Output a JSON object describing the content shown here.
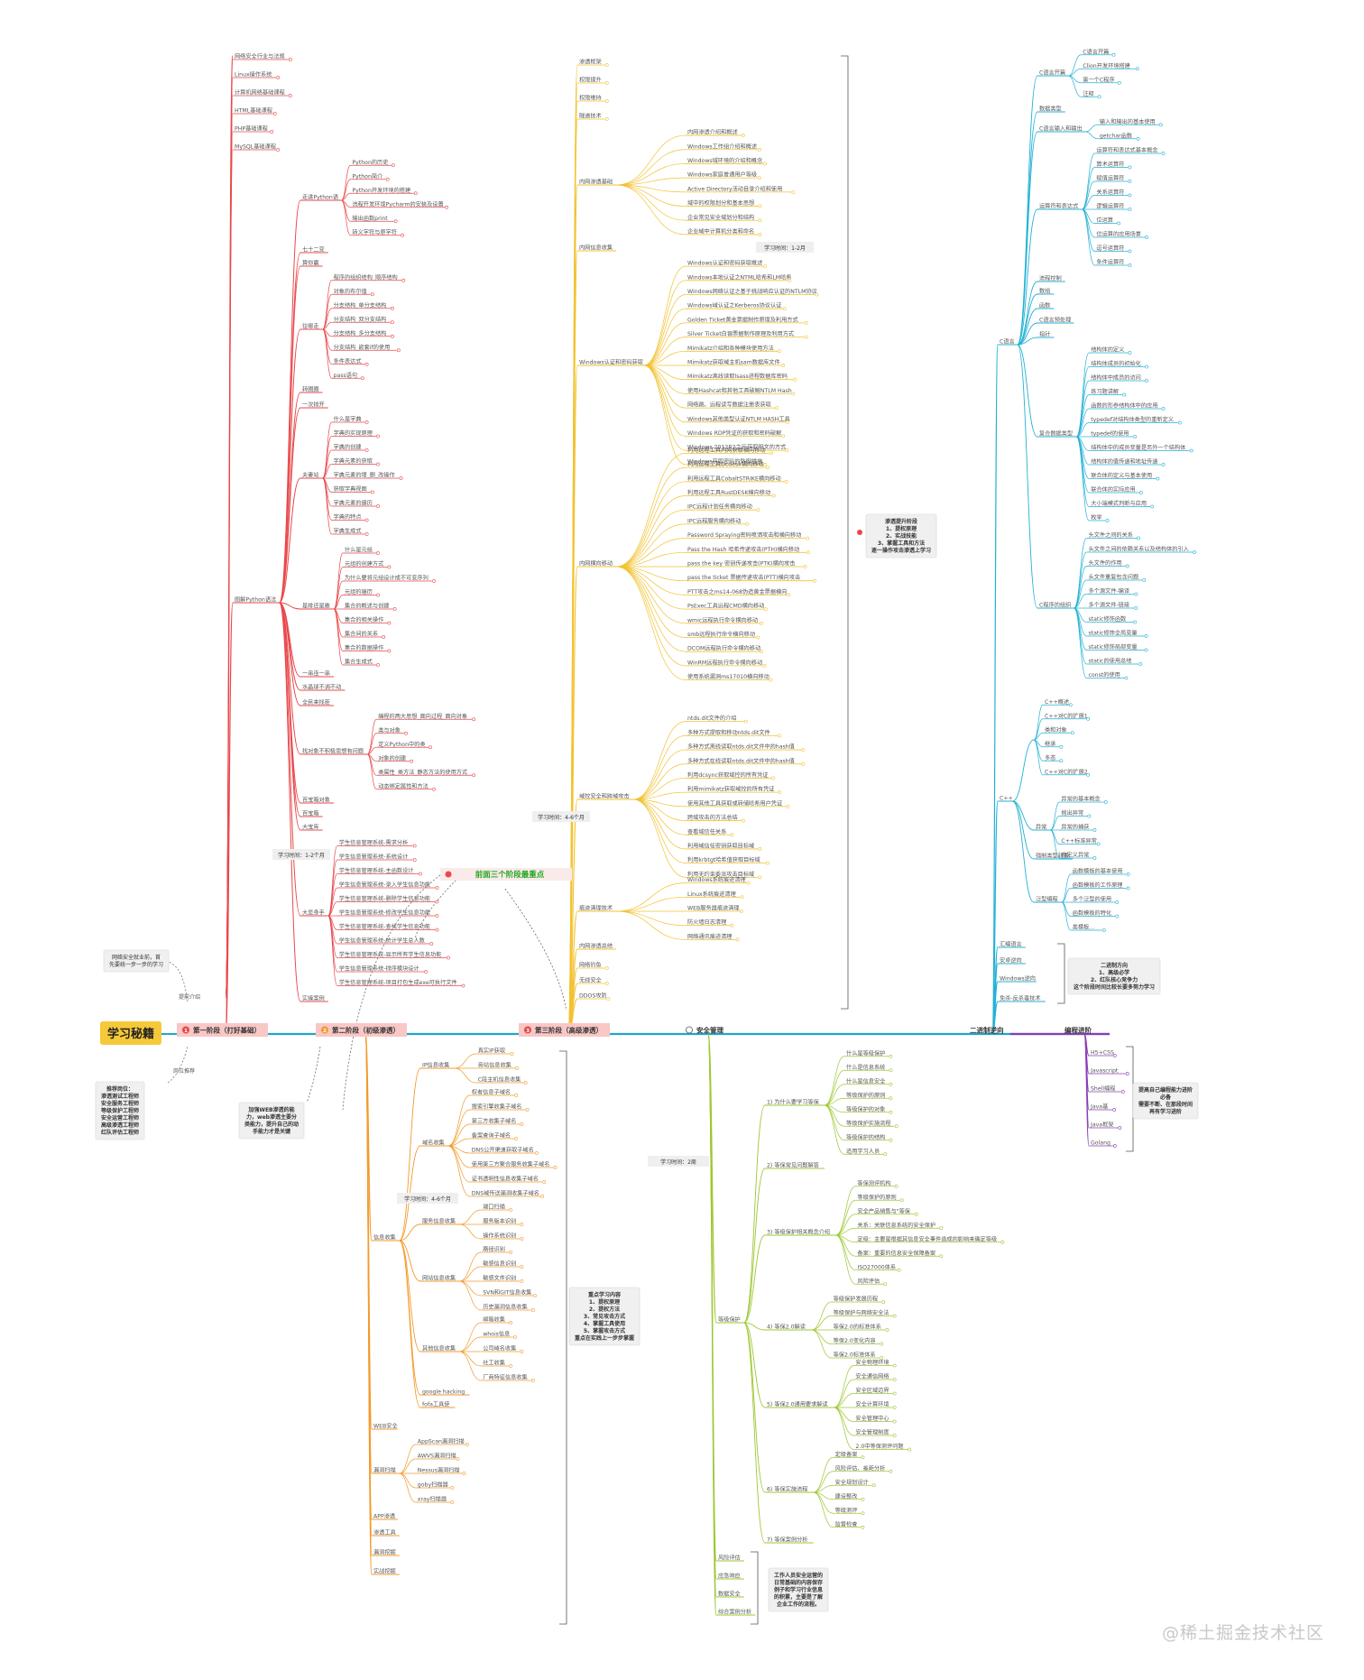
{
  "root": {
    "label": "学习秘籍"
  },
  "watermark": "@稀土掘金技术社区",
  "colors": {
    "red": "#e8484a",
    "orange": "#f39a2c",
    "yellow": "#f2c230",
    "green": "#9cc832",
    "cyan": "#23b1d3",
    "purple": "#8b3bb6",
    "spine": "#22a6c8"
  },
  "stages": [
    {
      "num": "1",
      "label": "第一阶段（打好基础）",
      "color": "#e8484a"
    },
    {
      "num": "2",
      "label": "第二阶段（初级渗透）",
      "color": "#f39a2c"
    },
    {
      "num": "3",
      "label": "第三阶段（高级渗透）",
      "color": "#e8484a"
    },
    {
      "num": "4",
      "label": "安全管理",
      "color": "#9cc832"
    },
    {
      "num": "",
      "label": "二进制逆向",
      "color": "#23b1d3"
    },
    {
      "num": "",
      "label": "编程进阶",
      "color": "#8b3bb6"
    }
  ],
  "left_notes": {
    "goal_label": "提前介绍",
    "goal_text": [
      "网络安全就业前，首",
      "先要统一步一步的学习"
    ],
    "jobs_label": "岗位推荐",
    "jobs": [
      "推荐岗位：",
      "渗透测试工程师",
      "安全服务工程师",
      "等级保护工程师",
      "安全运营工程师",
      "高级渗透工程师",
      "红队评估工程师"
    ]
  },
  "stage1": {
    "basics": [
      "网络安全行业与法规",
      "Linux操作系统",
      "计算机网络基础课程",
      "HTML基础课程",
      "PHP基础课程",
      "MySQL基础课程"
    ],
    "python_label": "图解Python语法",
    "python_groups": [
      {
        "label": "走进Python语",
        "items": [
          "Python的历史",
          "Python简介",
          "Python开发环境的搭建",
          "流程开发环境Pycharm的安装及设置",
          "输出函数print",
          "转义字符与原字符"
        ]
      },
      {
        "label": "七十二变",
        "items": []
      },
      {
        "label": "算你赢",
        "items": []
      },
      {
        "label": "往哪走",
        "items": [
          "程序的组织结构_顺序结构",
          "对象的布尔值",
          "分支结构_单分支结构",
          "分支结构_双分支结构",
          "分支结构_多分支结构",
          "分支结构_嵌套if的使用",
          "条件表达式",
          "pass语句"
        ]
      },
      {
        "label": "转圈圈",
        "items": []
      },
      {
        "label": "一次排开",
        "items": []
      },
      {
        "label": "夫妻站",
        "items": [
          "什么是字典",
          "字典的实现原理",
          "字典的创建",
          "字典元素的获取",
          "字典元素的增_删_改操作",
          "获取字典视图",
          "字典元素的遍历",
          "字典的特点",
          "字典生成式"
        ]
      },
      {
        "label": "是排还是散",
        "items": [
          "什么是元组",
          "元组的创建方式",
          "为什么要将元组设计成不可变序列",
          "元组的遍历",
          "集合的概述与创建",
          "集合的相关操作",
          "集合间的关系",
          "集合的数据操作",
          "集合生成式"
        ]
      },
      {
        "label": "一串连一串",
        "items": []
      },
      {
        "label": "水晶球不调不动",
        "items": []
      },
      {
        "label": "全民来找茬",
        "items": []
      },
      {
        "label": "找对象不积极思想有问题",
        "items": [
          "编程的两大思想_面向过程_面向对象",
          "类与对象",
          "定义Python中的类",
          "对象的创建",
          "类属性_类方法_静态方法的使用方式",
          "动态绑定属性和方法"
        ]
      },
      {
        "label": "百宝箱对象",
        "items": []
      },
      {
        "label": "百宝箱",
        "items": []
      },
      {
        "label": "大宝库",
        "items": []
      },
      {
        "label": "大显身手",
        "items": [
          "学生信息管理系统-需求分析",
          "学生信息管理系统-系统设计",
          "学生信息管理系统-主函数设计",
          "学生信息管理系统-录入学生信息功能",
          "学生信息管理系统-删除学生信息功能",
          "学生信息管理系统-修改学生信息功能",
          "学生信息管理系统-查找学生信息功能",
          "学生信息管理系统-统计学生总人数",
          "学生信息管理系统-显示所有学生信息功能",
          "学生信息管理系统-排序模块设计",
          "学生信息管理系统-项目打包生成exe可执行文件"
        ]
      },
      {
        "label": "实操案例",
        "items": []
      }
    ],
    "time": "学习时间：1-2个月",
    "highlight": "前面三个阶段最重点"
  },
  "stage2": {
    "time": "学习时间：4-6个月",
    "groups": [
      {
        "label": "信息收集",
        "sub": [
          {
            "label": "IP信息收集",
            "items": [
              "真实IP获取",
              "旁站信息收集",
              "C段主机信息收集"
            ]
          },
          {
            "label": "域名收集",
            "items": [
              "权者信息子域名",
              "搜索引擎收集子域名",
              "第三方收集子域名",
              "备案查询子域名",
              "DNS公开渠道获取子域名",
              "使用第三方聚合服务收集子域名",
              "证书透明性信息收集子域名",
              "DNS域传送漏洞收集子域名"
            ]
          },
          {
            "label": "服务信息收集",
            "items": [
              "端口扫描",
              "服务版本识别",
              "操作系统识别"
            ]
          },
          {
            "label": "网站信息收集",
            "items": [
              "路径识别",
              "敏感信息识别",
              "敏感文件识别",
              "SVN和GIT信息收集",
              "历史漏洞信息收集"
            ]
          },
          {
            "label": "其他信息收集",
            "items": [
              "邮箱收集",
              "whois信息",
              "公司域名收集",
              "社工收集",
              "厂商特征信息收集"
            ]
          },
          {
            "label": "google hacking",
            "items": []
          },
          {
            "label": "fofa工具使",
            "items": []
          }
        ]
      },
      {
        "label": "WEB安全",
        "sub": []
      },
      {
        "label": "漏洞扫描",
        "sub": [
          {
            "label": "",
            "items": [
              "AppScan漏洞扫描",
              "AWVS漏洞扫描",
              "Nessus漏洞扫描",
              "goby扫描器",
              "xray扫描器"
            ]
          }
        ]
      },
      {
        "label": "APP渗透",
        "sub": []
      },
      {
        "label": "渗透工具",
        "sub": []
      },
      {
        "label": "漏洞挖掘",
        "sub": []
      },
      {
        "label": "实战挖掘",
        "sub": []
      }
    ],
    "note_web": [
      "加强WEB渗透的能",
      "力，web渗透主要分",
      "类能力，提升自己的动",
      "手能力才是关键"
    ],
    "note_key": [
      "重点学习内容",
      "1、提权原理",
      "2、提权方法",
      "3、常见攻击方式",
      "4、掌握工具使用",
      "5、掌握攻击方式",
      "重点在实践上一步步掌握"
    ]
  },
  "stage3": {
    "time": "学习时间：1-2月",
    "time2": "学习时间：4-6个月",
    "top": [
      "渗透框架",
      "权限提升",
      "权限维持",
      "隧道技术"
    ],
    "groups": [
      {
        "label": "内网渗透基础",
        "items": [
          "内网渗透介绍和概述",
          "Windows工作组介绍和概述",
          "Windows域环境的介绍和概念",
          "Windows家庭普通用户等级",
          "Active Directory活动目录介绍和使用",
          "域中的权限划分和基本思想",
          "企业常见安全域划分和结构",
          "企业域中计算机分类和命名"
        ]
      },
      {
        "label": "内网信息收集",
        "items": []
      },
      {
        "label": "Windows认证和密码获取",
        "items": [
          "Windows认证和密码获取概述",
          "Windows本地认证之NTML哈希和LM哈希",
          "Windows网络认证之基于挑战响应认证的NTLM协议",
          "Windows域认证之Kerberos协议认证",
          "Golden Ticket黄金票据制作原理及利用方式",
          "Silver Ticket白银票据制作原理及利用方式",
          "Mimikatz介绍和各种模块使用方法",
          "Mimikatz获取域主机sam数据库文件",
          "Mimikatz离线读取lsass进程数据库密码",
          "使用Hashcat和其他工具破解NTLM Hash",
          "网络跳、远程读写数据注册表获取",
          "Windows其他类型认证NTLM HASH工具",
          "Windows RDP凭证的获取和密码破解",
          "Windows 2012R2之后获取明文的方式",
          "Windows获取密码的防御措施"
        ]
      },
      {
        "label": "内网横向移动",
        "items": [
          "利用远程工具内网获取横向移动",
          "利用远程工具Dcdesk横向移动",
          "利用远程工具CobaltSTRIKE横向移动",
          "利用远程工具RustDESK横向移动",
          "IPC远程计划任务横向移动",
          "IPC远程服务横向移动",
          "Password Spraying密码喷洒攻击和横向移动",
          "Pass the Hash 哈希传递攻击(PTH)横向移动",
          "pass the key 密钥传递攻击(PTK)横向攻击",
          "pass the ticket 票据传递攻击(PTT)横向攻击",
          "PTT攻击之ms14-068伪造黄金票据横向",
          "PsExec工具远程CMD横向移动",
          "wmic远程执行命令横向移动",
          "smb远程执行命令横向移动",
          "DCOM远程执行命令横向移动",
          "WinRM远程执行命令横向移动",
          "使用系统漏洞ms17010横向移动"
        ]
      },
      {
        "label": "域控安全和跨域攻击",
        "items": [
          "ntds.dit文件的介绍",
          "多种方式提取和移动ntds.dit文件",
          "多种方式离线读取ntds.dit文件中的hash值",
          "多种方式在线读取ntds.dit文件中的hash值",
          "利用dcsync获取域控的所有凭证",
          "利用mimikatz获取域控的所有凭证",
          "使用其他工具获取或转储哈希用户凭证",
          "跨域攻击的方法总结",
          "查看域信任关系",
          "利用域信任密钥获取目标域",
          "利用krbtgt哈希值获取目标域",
          "利用无约束委派攻击目标域"
        ]
      },
      {
        "label": "痕迹清理技术",
        "items": [
          "Windows系统痕迹清理",
          "Linux系统痕迹清理",
          "WEB服务器痕迹清理",
          "防火墙日志清理",
          "网络通讯痕迹清理"
        ]
      },
      {
        "label": "内网渗透总结",
        "items": []
      }
    ],
    "bottom": [
      "网络钓鱼",
      "无线安全",
      "DDOS攻防"
    ],
    "note_right": [
      "渗透提升阶段",
      "1、提权原理",
      "2、实战技能",
      "3、掌握工具和方法",
      "逐一操作攻击渗透上学习"
    ]
  },
  "stage4": {
    "time": "学习时间：2周",
    "groups": [
      {
        "label": "等级保护",
        "sub": [
          {
            "label": "1) 为什么要学习等保",
            "items": [
              "什么是等级保护",
              "什么是信息系统",
              "什么是信息安全",
              "等级保护的原则",
              "等级保护的对象",
              "等级保护实施流程",
              "等级保护的结构",
              "适用学习人员"
            ]
          },
          {
            "label": "2) 等保常见问题解答",
            "items": []
          },
          {
            "label": "3) 等级保护相关概念介绍",
            "items": [
              "等保测评机构",
              "等级保护的原则",
              "安全产品销售与\"等保",
              "关系：关联信息系统的安全保护",
              "定级：主要是根据其信息安全事件造成的影响来确定等级",
              "备案：重要的信息安全保障备案",
              "ISO27000体系",
              "风险评估"
            ]
          },
          {
            "label": "4) 等保2.0解读",
            "items": [
              "等级保护发展历程",
              "等级保护与网络安全法",
              "等保2.0的标准体系",
              "等保2.0变化内容",
              "等保2.0标准体系"
            ]
          },
          {
            "label": "5) 等保2.0通用要求解读",
            "items": [
              "安全物理环境",
              "安全通信网络",
              "安全区域边界",
              "安全计算环境",
              "安全管理中心",
              "安全管理制度",
              "2.0中等保测评问题"
            ]
          },
          {
            "label": "6) 等保实施流程",
            "items": [
              "定级备案",
              "风险评估、差距分析",
              "安全规划设计",
              "建设整改",
              "等级测评",
              "监督检查"
            ]
          },
          {
            "label": "7) 等保案例分析",
            "items": []
          }
        ]
      },
      {
        "label": "风险评估",
        "sub": []
      },
      {
        "label": "应急响应",
        "sub": []
      },
      {
        "label": "数据安全",
        "sub": []
      },
      {
        "label": "综合案例分析",
        "sub": []
      }
    ],
    "note": [
      "工作人员安全运营的",
      "日常基础的内容保存",
      "例子和学习行业信息",
      "的积累，主要是了解",
      "企业工作的流程。"
    ]
  },
  "reverse": {
    "groups": [
      {
        "label": "C语言",
        "sub": [
          {
            "label": "C语言开篇",
            "items": [
              "C语言开篇",
              "Clion开发环境搭建",
              "第一个C程序",
              "注释"
            ]
          },
          {
            "label": "数据类型",
            "items": []
          },
          {
            "label": "C语言输入和输出",
            "items": [
              "输入和输出的基本使用",
              "getchar函数"
            ]
          },
          {
            "label": "运算符和表达式",
            "items": [
              "运算符和表达式基本概念",
              "算术运算符",
              "赋值运算符",
              "关系运算符",
              "逻辑运算符",
              "位运算",
              "位运算的应用场景",
              "逗号运算符",
              "条件运算符"
            ]
          },
          {
            "label": "流程控制",
            "items": []
          },
          {
            "label": "数组",
            "items": []
          },
          {
            "label": "函数",
            "items": []
          },
          {
            "label": "C语言预处理",
            "items": []
          },
          {
            "label": "指针",
            "items": []
          },
          {
            "label": "复合数据类型",
            "items": [
              "结构体的定义",
              "结构体成员的初始化",
              "结构体中成员的访问",
              "练习题讲解",
              "函数的形参结构体中的应用",
              "typedef对结构体类型的重新定义",
              "typedef的使用",
              "结构体中的成员变量是另外一个结构体",
              "结构体的值传递和地址传递",
              "联合体的定义与基本使用",
              "联合体的实际应用",
              "大小端模式判断与应用",
              "枚举"
            ]
          },
          {
            "label": "C程序的组织",
            "items": [
              "头文件之间的关系",
              "头文件之间的依赖关系以及结构体的引入",
              "头文件的作用",
              "头文件重复包含问题",
              "多个源文件-编译",
              "多个源文件-链接",
              "static修饰函数",
              "static修饰全局变量",
              "static修饰局部变量",
              "static的使用总结",
              "const的使用"
            ]
          }
        ]
      },
      {
        "label": "C++",
        "sub": [
          {
            "label": "",
            "items": [
              "C++概述",
              "C++对C的扩展1",
              "类和对象",
              "继承",
              "多态",
              "C++对C的扩展2"
            ]
          },
          {
            "label": "异常",
            "items": [
              "异常的基本概念",
              "抛出异常",
              "异常的捕获",
              "C++标准异常",
              "自定义异常"
            ]
          },
          {
            "label": "强制类型转换",
            "items": []
          },
          {
            "label": "泛型编程",
            "items": [
              "函数模板的基本使用",
              "函数模板的工作原理",
              "多个泛型的使用",
              "函数模板的特化",
              "类模板..."
            ]
          }
        ]
      },
      {
        "label": "汇编语言",
        "sub": []
      },
      {
        "label": "安卓逆向",
        "sub": []
      },
      {
        "label": "Windows逆向",
        "sub": []
      },
      {
        "label": "免杀-反杀毒技术",
        "sub": []
      }
    ],
    "note": [
      "二进制方向",
      "1、高级必学",
      "2、红队核心竞争力",
      "这个阶段时间比较长要多努力学习"
    ]
  },
  "programming": {
    "items": [
      "H5+CSS",
      "Javascript",
      "Shell编程",
      "Java基",
      "Java框架",
      "Golang"
    ],
    "note": [
      "提高自己编程能力进阶",
      "必备",
      "需要不断、在那段时间",
      "再有学习进阶"
    ]
  }
}
